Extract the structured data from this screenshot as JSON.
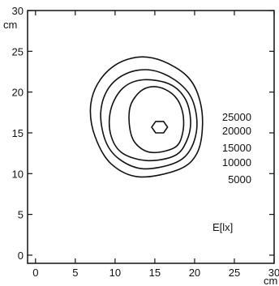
{
  "chart_data": {
    "type": "contour",
    "title": "",
    "x_unit": "cm",
    "y_unit": "cm",
    "xlim": [
      -1,
      30
    ],
    "ylim": [
      -1,
      30
    ],
    "x_ticks": [
      0,
      5,
      10,
      15,
      20,
      25,
      30
    ],
    "y_ticks": [
      0,
      5,
      10,
      15,
      20,
      25,
      30
    ],
    "x_tick_labels": [
      "0",
      "5",
      "10",
      "15",
      "20",
      "25",
      "30"
    ],
    "y_tick_labels": [
      "0",
      "5",
      "10",
      "15",
      "20",
      "25",
      "30"
    ],
    "grid": false,
    "unit_label": "E[lx]",
    "levels": [
      "25000",
      "20000",
      "15000",
      "10000",
      "5000"
    ],
    "contours": [
      {
        "level": 5000,
        "points": [
          [
            13,
            9.6
          ],
          [
            18,
            10.5
          ],
          [
            20.3,
            12.5
          ],
          [
            21,
            16
          ],
          [
            20.5,
            19.5
          ],
          [
            19,
            22
          ],
          [
            16,
            23.8
          ],
          [
            13,
            24.3
          ],
          [
            10,
            23.3
          ],
          [
            7.8,
            21
          ],
          [
            6.9,
            18
          ],
          [
            7.5,
            14.5
          ],
          [
            9.5,
            11.2
          ]
        ]
      },
      {
        "level": 10000,
        "points": [
          [
            13.5,
            10.6
          ],
          [
            17.5,
            11.3
          ],
          [
            19.5,
            13
          ],
          [
            20.3,
            16
          ],
          [
            19.6,
            19.3
          ],
          [
            17.5,
            21.5
          ],
          [
            14.5,
            22.7
          ],
          [
            11.5,
            22.3
          ],
          [
            9.2,
            20.5
          ],
          [
            8.2,
            17.5
          ],
          [
            8.8,
            14
          ],
          [
            10.5,
            11.8
          ]
        ]
      },
      {
        "level": 15000,
        "points": [
          [
            14,
            11.6
          ],
          [
            17.5,
            12.2
          ],
          [
            19,
            14
          ],
          [
            19.5,
            16.5
          ],
          [
            18.8,
            19.2
          ],
          [
            16.8,
            21
          ],
          [
            13.5,
            21.5
          ],
          [
            11,
            20.5
          ],
          [
            9.5,
            18
          ],
          [
            9.4,
            15
          ],
          [
            10.8,
            12.6
          ]
        ]
      },
      {
        "level": 20000,
        "points": [
          [
            14.5,
            12.6
          ],
          [
            17.5,
            13.2
          ],
          [
            18.5,
            15
          ],
          [
            18.5,
            17.5
          ],
          [
            17.5,
            19.5
          ],
          [
            15.5,
            20.6
          ],
          [
            13.5,
            20.3
          ],
          [
            12,
            18.5
          ],
          [
            11.8,
            16
          ],
          [
            12.5,
            13.8
          ]
        ]
      },
      {
        "level": 25000,
        "points": [
          [
            15.1,
            15
          ],
          [
            16.1,
            15
          ],
          [
            16.6,
            15.7
          ],
          [
            16.1,
            16.4
          ],
          [
            15.1,
            16.4
          ],
          [
            14.6,
            15.7
          ]
        ]
      }
    ]
  }
}
